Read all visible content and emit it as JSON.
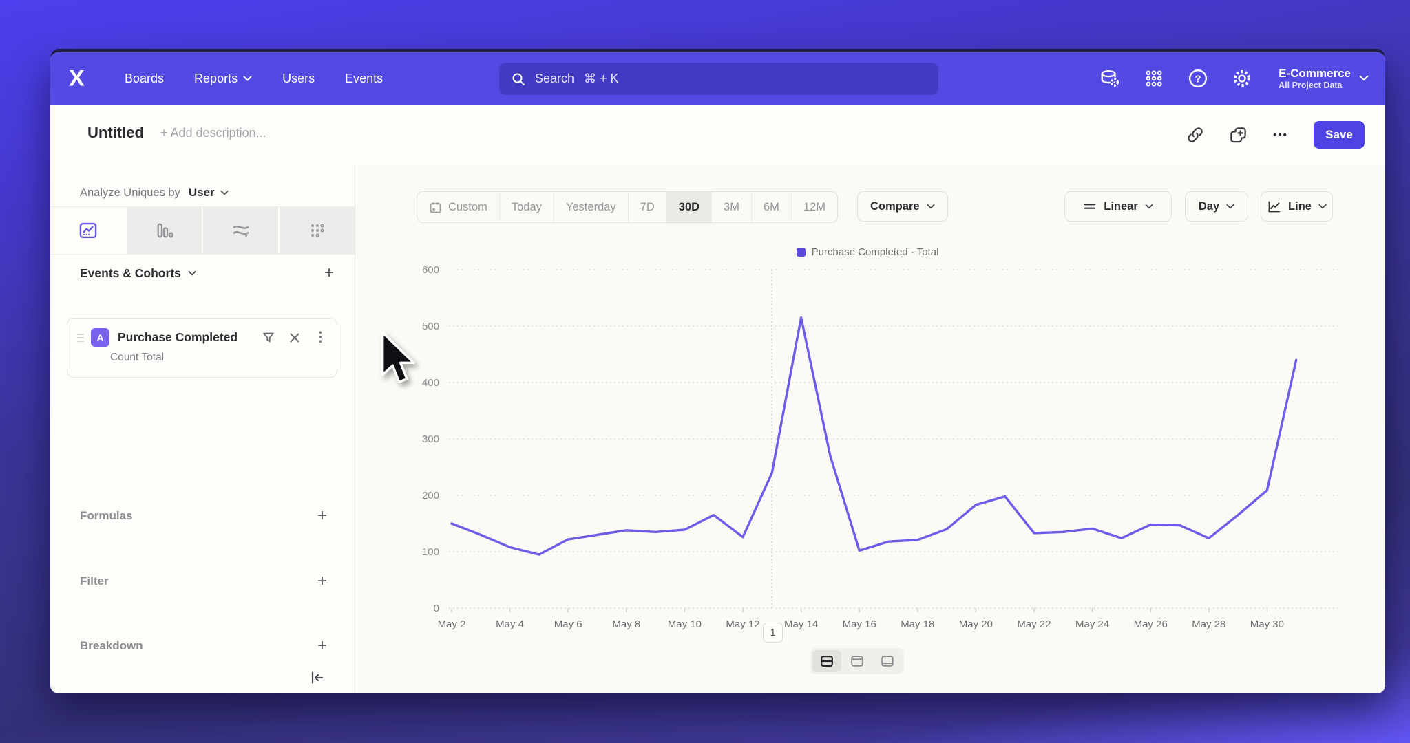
{
  "topnav": {
    "logo": "X",
    "items": [
      "Boards",
      "Reports",
      "Users",
      "Events"
    ],
    "search_label": "Search",
    "search_shortcut": "⌘ + K",
    "project": {
      "name": "E-Commerce",
      "scope": "All Project Data"
    }
  },
  "header": {
    "title": "Untitled",
    "description_placeholder": "+ Add description...",
    "ellipsis_glyph": "•••",
    "save_label": "Save"
  },
  "sidebar": {
    "analyze_prefix": "Analyze Uniques by",
    "analyze_value": "User",
    "events_header": "Events & Cohorts",
    "plus_glyph": "+",
    "event": {
      "letter": "A",
      "name": "Purchase Completed",
      "metric": "Count Total",
      "kebab_glyph": "⋮"
    },
    "sections": [
      "Formulas",
      "Filter",
      "Breakdown"
    ]
  },
  "controls": {
    "ranges": [
      "Custom",
      "Today",
      "Yesterday",
      "7D",
      "30D",
      "3M",
      "6M",
      "12M"
    ],
    "active_range": "30D",
    "compare_label": "Compare",
    "scale_label": "Linear",
    "interval_label": "Day",
    "chart_type_label": "Line"
  },
  "legend": {
    "label": "Purchase Completed - Total",
    "color": "#5b49d9"
  },
  "colors": {
    "brand_purple": "#5349e3",
    "accent_purple": "#4f43e6",
    "line_purple": "#6c5ce7",
    "grid_gray": "#dbd9d3"
  },
  "chart_data": {
    "type": "line",
    "title": "",
    "x": [
      "May 2",
      "May 3",
      "May 4",
      "May 5",
      "May 6",
      "May 7",
      "May 8",
      "May 9",
      "May 10",
      "May 11",
      "May 12",
      "May 13",
      "May 14",
      "May 15",
      "May 16",
      "May 17",
      "May 18",
      "May 19",
      "May 20",
      "May 21",
      "May 22",
      "May 23",
      "May 24",
      "May 25",
      "May 26",
      "May 27",
      "May 28",
      "May 29",
      "May 30",
      "May 31"
    ],
    "x_tick_every": 2,
    "series": [
      {
        "name": "Purchase Completed - Total",
        "color": "#6c5ce7",
        "values": [
          150,
          130,
          108,
          95,
          122,
          130,
          138,
          135,
          139,
          165,
          126,
          240,
          515,
          270,
          102,
          118,
          121,
          140,
          183,
          198,
          133,
          135,
          141,
          124,
          148,
          147,
          124,
          165,
          209,
          440
        ]
      }
    ],
    "ylim": [
      0,
      600
    ],
    "yticks": [
      0,
      100,
      200,
      300,
      400,
      500,
      600
    ],
    "grid": "horizontal-dotted",
    "legend_position": "top-center",
    "annotations": [
      {
        "x": "May 13",
        "label": "1"
      }
    ]
  }
}
